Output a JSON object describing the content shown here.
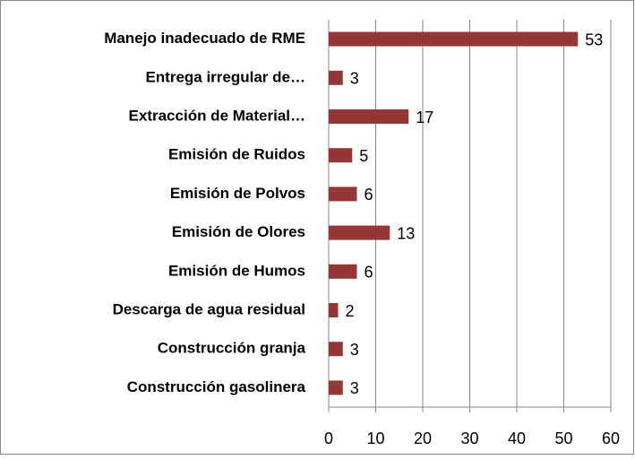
{
  "chart_data": {
    "type": "barh",
    "categories": [
      "Manejo inadecuado de RME",
      "Entrega irregular de…",
      "Extracción de Material…",
      "Emisión de Ruidos",
      "Emisión de Polvos",
      "Emisión de Olores",
      "Emisión de Humos",
      "Descarga de agua residual",
      "Construcción granja",
      "Construcción gasolinera"
    ],
    "values": [
      53,
      3,
      17,
      5,
      6,
      13,
      6,
      2,
      3,
      3
    ],
    "color": "#953735",
    "xlim": [
      0,
      60
    ],
    "xticks": [
      0,
      10,
      20,
      30,
      40,
      50,
      60
    ],
    "grid": true
  }
}
